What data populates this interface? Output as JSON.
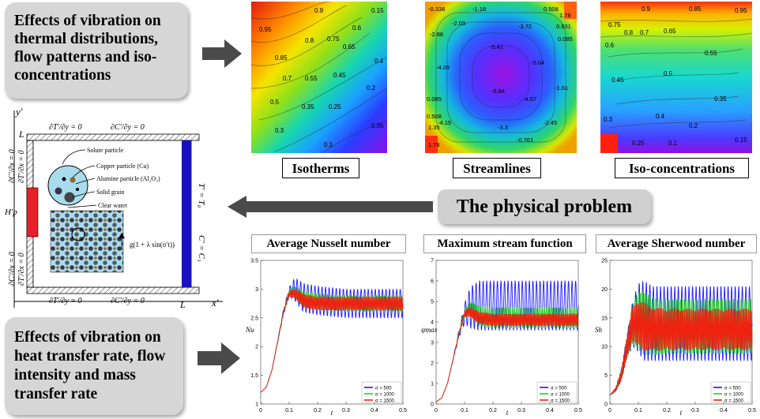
{
  "boxes": {
    "top_lines": [
      "Effects of vibration on",
      "thermal distributions,",
      "flow patterns and iso-",
      "concentrations"
    ],
    "bottom_lines": [
      "Effects of vibration on",
      "heat transfer rate, flow",
      "intensity and mass",
      "transfer rate"
    ],
    "physical_problem": "The physical problem"
  },
  "contours": {
    "labels": [
      "Isotherms",
      "Streamlines",
      "Iso-concentrations"
    ],
    "isotherm_values": [
      "0.9",
      "0.15",
      "0.95",
      "0.8",
      "0.75",
      "0.65",
      "0.6",
      "0.85",
      "0.4",
      "0.7",
      "0.55",
      "0.45",
      "0.2",
      "0.5",
      "0.35",
      "0.25",
      "0.3",
      "0.05",
      "0.1"
    ],
    "streamline_values": [
      "-0.338",
      "-1.18",
      "0.508",
      "1.78",
      "-2.03",
      "-3.72",
      "0.931",
      "-2.88",
      "0.085",
      "-5.41",
      "-5.04",
      "-4.09",
      "-5.84",
      "-1.61",
      "0.085",
      "-4.57",
      "0.508",
      "-4.15",
      "-3.3",
      "-2.45",
      "1.35",
      "1.78",
      "-0.761"
    ],
    "isoconc_values": [
      "0.9",
      "0.85",
      "0.95",
      "0.75",
      "0.8",
      "0.7",
      "0.65",
      "0.6",
      "0.55",
      "0.5",
      "0.45",
      "0.35",
      "0.3",
      "0.4",
      "0.2",
      "0.1",
      "0.25",
      "0.15"
    ]
  },
  "physical": {
    "x_axis": "x′",
    "y_axis": "y′",
    "L_top": "L",
    "L_bottom": "L",
    "top_bc_1": "∂T′/∂y = 0",
    "top_bc_2": "∂C′/∂y = 0",
    "bottom_bc_1": "∂T′/∂y = 0",
    "bottom_bc_2": "∂C′/∂y = 0",
    "left_top_bc_1": "∂C′/∂x = 0",
    "left_top_bc_2": "∂T′/∂x = 0",
    "left_bot_bc_1": "∂C′/∂x = 0",
    "left_bot_bc_2": "∂T′/∂x = 0",
    "heater": "H′p",
    "right_T": "T′ = T₀",
    "right_C": "C′ = C₁",
    "legend_solute": "Solute particle",
    "legend_cu": "Copper particle (Cu)",
    "legend_al": "Alumine particle (Al₂O₃)",
    "legend_grain": "Solid grain",
    "legend_water": "Clear water",
    "gravity": "g(1 + λ sin(σ′t))"
  },
  "chart_data": [
    {
      "type": "line",
      "title": "Average Nusselt number",
      "xlabel": "t",
      "ylabel": "Nu",
      "xlim": [
        0,
        0.5
      ],
      "ylim": [
        1,
        3.5
      ],
      "xticks": [
        "0",
        "0.1",
        "0.2",
        "0.3",
        "0.4",
        "0.5"
      ],
      "yticks": [
        "1",
        "1.5",
        "2",
        "2.5",
        "3",
        "3.5"
      ],
      "legend": "bottom-right",
      "series": [
        {
          "name": "σ = 500",
          "color": "#1a1aff",
          "x": [
            0,
            0.02,
            0.04,
            0.06,
            0.08,
            0.1,
            0.12,
            0.15,
            0.2,
            0.3,
            0.4,
            0.5
          ],
          "ymid": [
            1.2,
            1.3,
            1.6,
            2.1,
            2.6,
            2.95,
            3.0,
            2.85,
            2.8,
            2.75,
            2.75,
            2.75
          ],
          "amp": [
            0,
            0,
            0,
            0.02,
            0.05,
            0.08,
            0.2,
            0.25,
            0.25,
            0.25,
            0.25,
            0.25
          ]
        },
        {
          "name": "σ = 1000",
          "color": "#22cc22",
          "x": [
            0,
            0.02,
            0.04,
            0.06,
            0.08,
            0.1,
            0.12,
            0.15,
            0.2,
            0.3,
            0.4,
            0.5
          ],
          "ymid": [
            1.2,
            1.3,
            1.6,
            2.1,
            2.6,
            2.95,
            2.95,
            2.82,
            2.78,
            2.75,
            2.75,
            2.75
          ],
          "amp": [
            0,
            0,
            0,
            0.02,
            0.04,
            0.06,
            0.1,
            0.14,
            0.14,
            0.14,
            0.14,
            0.14
          ]
        },
        {
          "name": "σ = 1500",
          "color": "#ee2211",
          "x": [
            0,
            0.02,
            0.04,
            0.06,
            0.08,
            0.1,
            0.12,
            0.15,
            0.2,
            0.3,
            0.4,
            0.5
          ],
          "ymid": [
            1.2,
            1.3,
            1.6,
            2.1,
            2.6,
            2.92,
            2.92,
            2.8,
            2.75,
            2.75,
            2.75,
            2.75
          ],
          "amp": [
            0,
            0,
            0,
            0.01,
            0.03,
            0.05,
            0.08,
            0.12,
            0.12,
            0.12,
            0.12,
            0.12
          ]
        }
      ]
    },
    {
      "type": "line",
      "title": "Maximum stream function",
      "xlabel": "t",
      "ylabel": "ψmax",
      "xlim": [
        0,
        0.5
      ],
      "ylim": [
        0,
        7
      ],
      "xticks": [
        "0",
        "0.1",
        "0.2",
        "0.3",
        "0.4",
        "0.5"
      ],
      "yticks": [
        "0",
        "1",
        "2",
        "3",
        "4",
        "5",
        "6",
        "7"
      ],
      "legend": "bottom-right",
      "series": [
        {
          "name": "σ = 500",
          "color": "#1a1aff",
          "x": [
            0,
            0.02,
            0.04,
            0.06,
            0.08,
            0.1,
            0.12,
            0.15,
            0.2,
            0.3,
            0.4,
            0.5
          ],
          "ymid": [
            0.1,
            0.3,
            1.0,
            2.2,
            3.4,
            4.4,
            4.7,
            4.8,
            4.8,
            4.8,
            4.8,
            4.8
          ],
          "amp": [
            0,
            0,
            0,
            0.05,
            0.2,
            0.5,
            1.0,
            1.2,
            1.2,
            1.2,
            1.2,
            1.2
          ]
        },
        {
          "name": "σ = 1000",
          "color": "#22cc22",
          "x": [
            0,
            0.02,
            0.04,
            0.06,
            0.08,
            0.1,
            0.12,
            0.15,
            0.2,
            0.3,
            0.4,
            0.5
          ],
          "ymid": [
            0.1,
            0.3,
            1.0,
            2.2,
            3.4,
            4.4,
            4.6,
            4.3,
            4.2,
            4.2,
            4.2,
            4.2
          ],
          "amp": [
            0,
            0,
            0,
            0.03,
            0.1,
            0.2,
            0.35,
            0.5,
            0.5,
            0.5,
            0.5,
            0.5
          ]
        },
        {
          "name": "σ = 1500",
          "color": "#ee2211",
          "x": [
            0,
            0.02,
            0.04,
            0.06,
            0.08,
            0.1,
            0.12,
            0.15,
            0.2,
            0.3,
            0.4,
            0.5
          ],
          "ymid": [
            0.1,
            0.3,
            1.0,
            2.2,
            3.4,
            4.4,
            4.5,
            4.2,
            4.1,
            4.1,
            4.1,
            4.1
          ],
          "amp": [
            0,
            0,
            0,
            0.02,
            0.08,
            0.15,
            0.25,
            0.3,
            0.3,
            0.3,
            0.3,
            0.3
          ]
        }
      ]
    },
    {
      "type": "line",
      "title": "Average Sherwood number",
      "xlabel": "t",
      "ylabel": "Sh",
      "xlim": [
        0,
        0.5
      ],
      "ylim": [
        0,
        25
      ],
      "xticks": [
        "0",
        "0.1",
        "0.2",
        "0.3",
        "0.4",
        "0.5"
      ],
      "yticks": [
        "0",
        "5",
        "10",
        "15",
        "20",
        "25"
      ],
      "legend": "bottom-right",
      "series": [
        {
          "name": "σ = 500",
          "color": "#1a1aff",
          "x": [
            0,
            0.02,
            0.04,
            0.06,
            0.08,
            0.1,
            0.12,
            0.15,
            0.2,
            0.3,
            0.4,
            0.5
          ],
          "ymid": [
            1.5,
            2.5,
            5,
            10,
            14,
            15,
            14.5,
            14,
            14,
            14,
            14,
            14
          ],
          "amp": [
            0,
            0.3,
            1,
            2,
            4,
            6,
            7,
            6.5,
            6.5,
            6.5,
            6.5,
            6.5
          ]
        },
        {
          "name": "σ = 1000",
          "color": "#22cc22",
          "x": [
            0,
            0.02,
            0.04,
            0.06,
            0.08,
            0.1,
            0.12,
            0.15,
            0.2,
            0.3,
            0.4,
            0.5
          ],
          "ymid": [
            1.5,
            2.5,
            5,
            10,
            14,
            14.5,
            14,
            13.5,
            13.5,
            13.5,
            13.5,
            13.5
          ],
          "amp": [
            0,
            0.3,
            1,
            2,
            3.5,
            5,
            5.5,
            5,
            4.8,
            4.8,
            4.8,
            4.8
          ]
        },
        {
          "name": "σ = 1500",
          "color": "#ee2211",
          "x": [
            0,
            0.02,
            0.04,
            0.06,
            0.08,
            0.1,
            0.12,
            0.15,
            0.2,
            0.3,
            0.4,
            0.5
          ],
          "ymid": [
            1.5,
            2.5,
            5,
            10,
            14,
            14,
            13.5,
            13,
            13,
            13,
            13,
            13
          ],
          "amp": [
            0,
            0.3,
            1,
            2,
            3,
            4,
            4.2,
            3.8,
            3.6,
            3.6,
            3.6,
            3.6
          ]
        }
      ]
    }
  ],
  "colors": {
    "heater": "#e8202a",
    "cold_wall": "#1a10c0",
    "cell": "#a8dcec",
    "box": "#d6d6d6",
    "arrow": "#4a4a4a"
  }
}
